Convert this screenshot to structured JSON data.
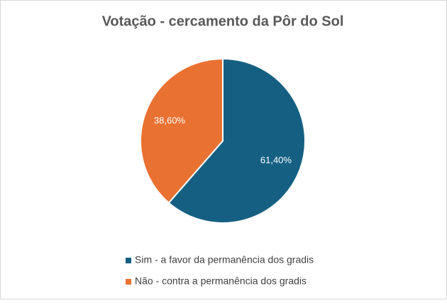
{
  "chart_data": {
    "type": "pie",
    "title": "Votação - cercamento da Pôr do Sol",
    "categories": [
      "Sim - a favor da permanência dos gradis",
      "Não - contra a permanência dos gradis"
    ],
    "values": [
      61.4,
      38.6
    ],
    "value_labels": [
      "61,40%",
      "38,60%"
    ],
    "colors": [
      "#156082",
      "#e97132"
    ],
    "legend": "bottom"
  }
}
